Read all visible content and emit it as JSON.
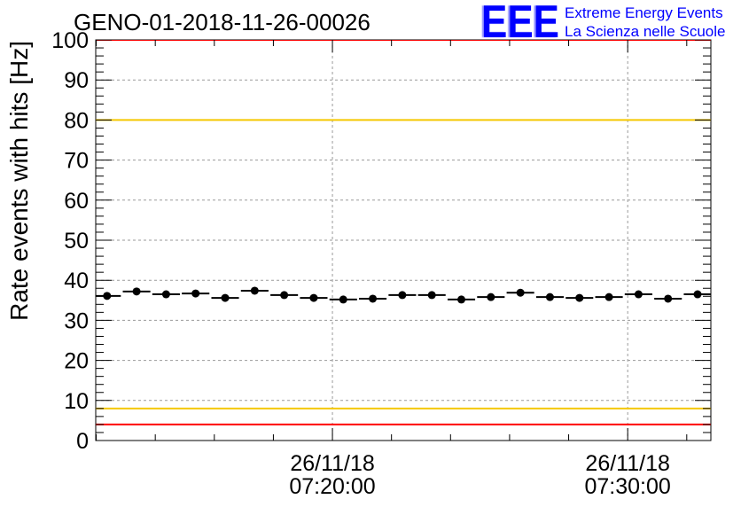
{
  "chart_data": {
    "type": "scatter",
    "title": "GENO-01-2018-11-26-00026",
    "ylabel": "Rate events with hits [Hz]",
    "ylim": [
      0,
      100
    ],
    "yticks": [
      0,
      10,
      20,
      30,
      40,
      50,
      60,
      70,
      80,
      90,
      100
    ],
    "y_minor_step": 2,
    "xlim_seconds_of_day": [
      25919,
      27169
    ],
    "x_minor_step_seconds": 120,
    "xticks": [
      {
        "seconds_of_day": 26400,
        "date": "26/11/18",
        "time": "07:20:00"
      },
      {
        "seconds_of_day": 27000,
        "date": "26/11/18",
        "time": "07:30:00"
      }
    ],
    "grid": true,
    "series": [
      {
        "x_error_seconds": 28,
        "x_seconds_of_day": [
          25942,
          26002,
          26062,
          26122,
          26182,
          26242,
          26302,
          26362,
          26422,
          26482,
          26542,
          26602,
          26662,
          26722,
          26782,
          26842,
          26902,
          26962,
          27022,
          27082,
          27142
        ],
        "values": [
          36.1,
          37.2,
          36.5,
          36.7,
          35.6,
          37.4,
          36.3,
          35.6,
          35.2,
          35.4,
          36.3,
          36.3,
          35.2,
          35.8,
          36.9,
          35.8,
          35.6,
          35.8,
          36.5,
          35.4,
          36.5
        ]
      }
    ],
    "reference_lines": [
      {
        "y": 100,
        "color": "#ff0000"
      },
      {
        "y": 80,
        "color": "#f5c800"
      },
      {
        "y": 8,
        "color": "#f5c800"
      },
      {
        "y": 4,
        "color": "#ff0000"
      }
    ],
    "marker_color": "#000000"
  },
  "logo": {
    "mark": "EEE",
    "line1": "Extreme Energy Events",
    "line2": "La Scienza nelle Scuole",
    "color": "#0000ff"
  }
}
